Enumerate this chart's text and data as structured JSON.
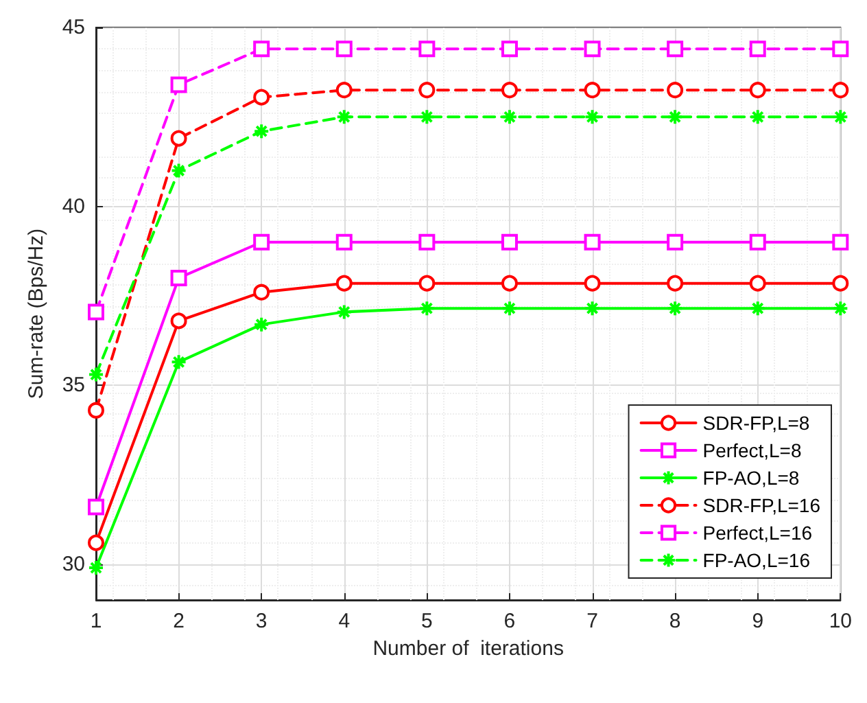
{
  "chart_data": {
    "type": "line",
    "xlabel": "Number of  iterations",
    "ylabel": "Sum-rate (Bps/Hz)",
    "x": [
      1,
      2,
      3,
      4,
      5,
      6,
      7,
      8,
      9,
      10
    ],
    "series": [
      {
        "name": "SDR-FP,L=8",
        "color": "#ff0000",
        "marker": "circle",
        "line_style": "solid",
        "values": [
          30.6,
          36.8,
          37.6,
          37.85,
          37.85,
          37.85,
          37.85,
          37.85,
          37.85,
          37.85
        ]
      },
      {
        "name": "Perfect,L=8",
        "color": "#ff00ff",
        "marker": "square",
        "line_style": "solid",
        "values": [
          31.6,
          38.0,
          39.0,
          39.0,
          39.0,
          39.0,
          39.0,
          39.0,
          39.0,
          39.0
        ]
      },
      {
        "name": "FP-AO,L=8",
        "color": "#00ff00",
        "marker": "cross",
        "line_style": "solid",
        "values": [
          29.9,
          35.65,
          36.7,
          37.05,
          37.15,
          37.15,
          37.15,
          37.15,
          37.15,
          37.15
        ]
      },
      {
        "name": "SDR-FP,L=16",
        "color": "#ff0000",
        "marker": "circle",
        "line_style": "dashed",
        "values": [
          34.3,
          41.9,
          43.05,
          43.25,
          43.25,
          43.25,
          43.25,
          43.25,
          43.25,
          43.25
        ]
      },
      {
        "name": "Perfect,L=16",
        "color": "#ff00ff",
        "marker": "square",
        "line_style": "dashed",
        "values": [
          37.05,
          43.4,
          44.4,
          44.4,
          44.4,
          44.4,
          44.4,
          44.4,
          44.4,
          44.4
        ]
      },
      {
        "name": "FP-AO,L=16",
        "color": "#00ff00",
        "marker": "cross",
        "line_style": "dashed",
        "values": [
          35.3,
          41.0,
          42.1,
          42.5,
          42.5,
          42.5,
          42.5,
          42.5,
          42.5,
          42.5
        ]
      }
    ],
    "xlim": [
      1,
      10
    ],
    "xticks": [
      1,
      2,
      3,
      4,
      5,
      6,
      7,
      8,
      9,
      10
    ],
    "ylim": [
      29,
      45
    ],
    "yticks": [
      30,
      35,
      40,
      45
    ],
    "grid": true,
    "legend": "bottom right"
  }
}
